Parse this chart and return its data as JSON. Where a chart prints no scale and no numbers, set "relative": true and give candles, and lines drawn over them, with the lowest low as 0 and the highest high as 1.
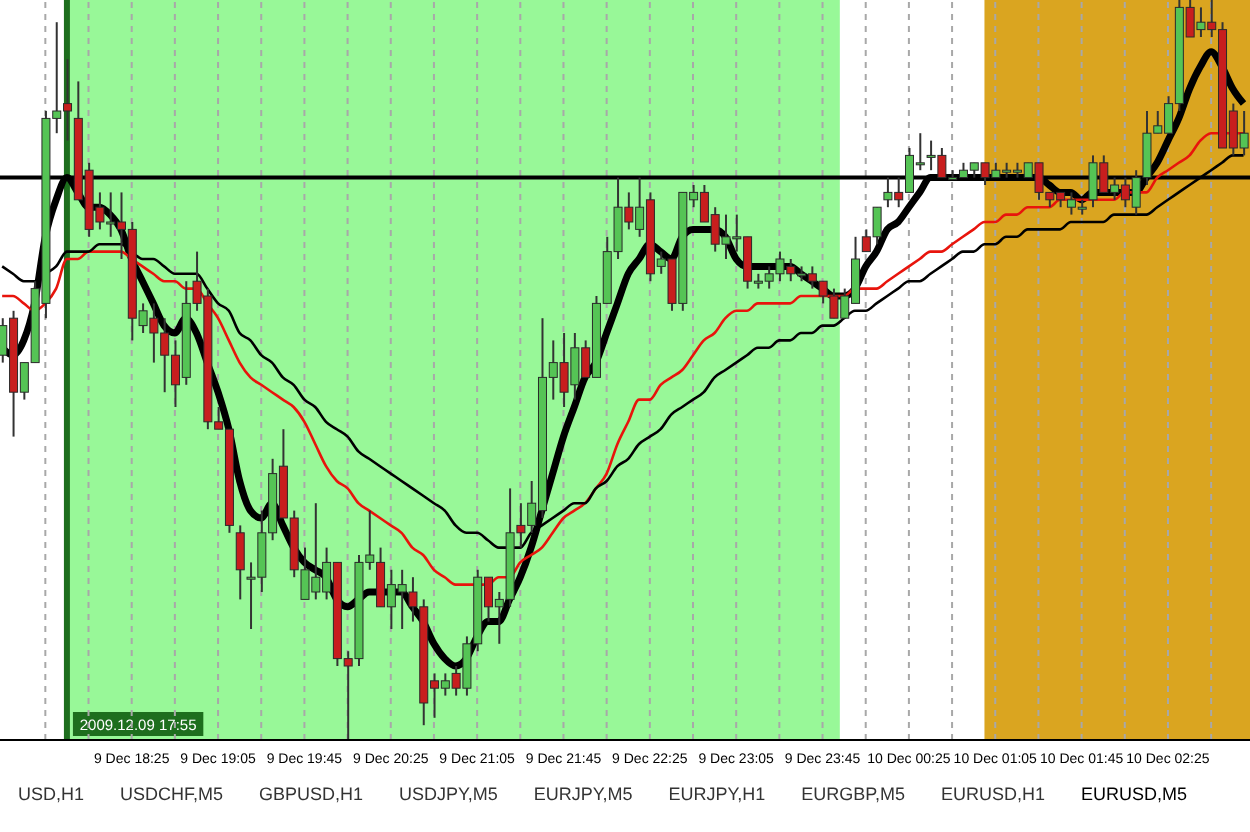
{
  "chart_data": {
    "type": "candlestick",
    "relative": true,
    "grid": "x",
    "x": [
      "2009-12-09T17:25",
      "2009-12-09T17:30",
      "2009-12-09T17:35",
      "2009-12-09T17:40",
      "2009-12-09T17:45",
      "2009-12-09T17:50",
      "2009-12-09T17:55",
      "2009-12-09T18:00",
      "2009-12-09T18:05",
      "2009-12-09T18:10",
      "2009-12-09T18:15",
      "2009-12-09T18:20",
      "2009-12-09T18:25",
      "2009-12-09T18:30",
      "2009-12-09T18:35",
      "2009-12-09T18:40",
      "2009-12-09T18:45",
      "2009-12-09T18:50",
      "2009-12-09T18:55",
      "2009-12-09T19:00",
      "2009-12-09T19:05",
      "2009-12-09T19:10",
      "2009-12-09T19:15",
      "2009-12-09T19:20",
      "2009-12-09T19:25",
      "2009-12-09T19:30",
      "2009-12-09T19:35",
      "2009-12-09T19:40",
      "2009-12-09T19:45",
      "2009-12-09T19:50",
      "2009-12-09T19:55",
      "2009-12-09T20:00",
      "2009-12-09T20:05",
      "2009-12-09T20:10",
      "2009-12-09T20:15",
      "2009-12-09T20:20",
      "2009-12-09T20:25",
      "2009-12-09T20:30",
      "2009-12-09T20:35",
      "2009-12-09T20:40",
      "2009-12-09T20:45",
      "2009-12-09T20:50",
      "2009-12-09T20:55",
      "2009-12-09T21:00",
      "2009-12-09T21:05",
      "2009-12-09T21:10",
      "2009-12-09T21:15",
      "2009-12-09T21:20",
      "2009-12-09T21:25",
      "2009-12-09T21:30",
      "2009-12-09T21:35",
      "2009-12-09T21:40",
      "2009-12-09T21:45",
      "2009-12-09T21:50",
      "2009-12-09T21:55",
      "2009-12-09T22:00",
      "2009-12-09T22:05",
      "2009-12-09T22:10",
      "2009-12-09T22:15",
      "2009-12-09T22:20",
      "2009-12-09T22:25",
      "2009-12-09T22:30",
      "2009-12-09T22:35",
      "2009-12-09T22:40",
      "2009-12-09T22:45",
      "2009-12-09T22:50",
      "2009-12-09T22:55",
      "2009-12-09T23:00",
      "2009-12-09T23:05",
      "2009-12-09T23:10",
      "2009-12-09T23:15",
      "2009-12-09T23:20",
      "2009-12-09T23:25",
      "2009-12-09T23:30",
      "2009-12-09T23:35",
      "2009-12-09T23:40",
      "2009-12-09T23:45",
      "2009-12-09T23:50",
      "2009-12-09T23:55",
      "2009-12-10T00:00",
      "2009-12-10T00:05",
      "2009-12-10T00:10",
      "2009-12-10T00:15",
      "2009-12-10T00:20",
      "2009-12-10T00:25",
      "2009-12-10T00:30",
      "2009-12-10T00:35",
      "2009-12-10T00:40",
      "2009-12-10T00:45",
      "2009-12-10T00:50",
      "2009-12-10T00:55",
      "2009-12-10T01:00",
      "2009-12-10T01:05",
      "2009-12-10T01:10",
      "2009-12-10T01:15",
      "2009-12-10T01:20",
      "2009-12-10T01:25",
      "2009-12-10T01:30",
      "2009-12-10T01:35",
      "2009-12-10T01:40",
      "2009-12-10T01:45",
      "2009-12-10T01:50",
      "2009-12-10T01:55",
      "2009-12-10T02:00",
      "2009-12-10T02:05",
      "2009-12-10T02:10",
      "2009-12-10T02:15",
      "2009-12-10T02:20",
      "2009-12-10T02:25",
      "2009-12-10T02:30",
      "2009-12-10T02:35",
      "2009-12-10T02:40",
      "2009-12-10T02:45",
      "2009-12-10T02:50",
      "2009-12-10T02:55",
      "2009-12-10T03:00"
    ],
    "ohlc": [
      [
        0.52,
        0.57,
        0.51,
        0.56
      ],
      [
        0.57,
        0.58,
        0.41,
        0.47
      ],
      [
        0.47,
        0.51,
        0.46,
        0.51
      ],
      [
        0.51,
        0.62,
        0.51,
        0.61
      ],
      [
        0.59,
        0.85,
        0.57,
        0.84
      ],
      [
        0.84,
        0.97,
        0.82,
        0.85
      ],
      [
        0.86,
        0.92,
        0.81,
        0.85
      ],
      [
        0.84,
        0.89,
        0.73,
        0.73
      ],
      [
        0.77,
        0.78,
        0.68,
        0.69
      ],
      [
        0.72,
        0.74,
        0.69,
        0.7
      ],
      [
        0.7,
        0.74,
        0.68,
        0.7
      ],
      [
        0.7,
        0.74,
        0.65,
        0.69
      ],
      [
        0.69,
        0.7,
        0.54,
        0.57
      ],
      [
        0.56,
        0.59,
        0.55,
        0.58
      ],
      [
        0.57,
        0.59,
        0.51,
        0.55
      ],
      [
        0.55,
        0.57,
        0.47,
        0.52
      ],
      [
        0.52,
        0.54,
        0.45,
        0.48
      ],
      [
        0.49,
        0.62,
        0.48,
        0.59
      ],
      [
        0.62,
        0.66,
        0.58,
        0.59
      ],
      [
        0.6,
        0.61,
        0.42,
        0.43
      ],
      [
        0.43,
        0.45,
        0.42,
        0.42
      ],
      [
        0.42,
        0.42,
        0.28,
        0.29
      ],
      [
        0.28,
        0.29,
        0.19,
        0.23
      ],
      [
        0.22,
        0.24,
        0.15,
        0.22
      ],
      [
        0.22,
        0.31,
        0.2,
        0.28
      ],
      [
        0.28,
        0.38,
        0.27,
        0.36
      ],
      [
        0.37,
        0.42,
        0.3,
        0.3
      ],
      [
        0.3,
        0.31,
        0.22,
        0.23
      ],
      [
        0.19,
        0.26,
        0.19,
        0.23
      ],
      [
        0.2,
        0.32,
        0.19,
        0.22
      ],
      [
        0.2,
        0.26,
        0.19,
        0.24
      ],
      [
        0.24,
        0.24,
        0.1,
        0.11
      ],
      [
        0.11,
        0.12,
        0.0,
        0.1
      ],
      [
        0.11,
        0.25,
        0.1,
        0.24
      ],
      [
        0.24,
        0.31,
        0.23,
        0.25
      ],
      [
        0.24,
        0.26,
        0.18,
        0.18
      ],
      [
        0.18,
        0.23,
        0.15,
        0.21
      ],
      [
        0.2,
        0.23,
        0.15,
        0.21
      ],
      [
        0.2,
        0.22,
        0.16,
        0.18
      ],
      [
        0.18,
        0.19,
        0.02,
        0.05
      ],
      [
        0.08,
        0.09,
        0.03,
        0.07
      ],
      [
        0.07,
        0.09,
        0.06,
        0.08
      ],
      [
        0.09,
        0.1,
        0.06,
        0.07
      ],
      [
        0.07,
        0.14,
        0.06,
        0.13
      ],
      [
        0.13,
        0.23,
        0.12,
        0.22
      ],
      [
        0.22,
        0.22,
        0.16,
        0.18
      ],
      [
        0.18,
        0.2,
        0.13,
        0.19
      ],
      [
        0.19,
        0.34,
        0.18,
        0.28
      ],
      [
        0.29,
        0.32,
        0.26,
        0.28
      ],
      [
        0.29,
        0.35,
        0.28,
        0.32
      ],
      [
        0.31,
        0.57,
        0.3,
        0.49
      ],
      [
        0.49,
        0.54,
        0.46,
        0.51
      ],
      [
        0.51,
        0.55,
        0.45,
        0.47
      ],
      [
        0.48,
        0.55,
        0.46,
        0.53
      ],
      [
        0.53,
        0.54,
        0.49,
        0.49
      ],
      [
        0.49,
        0.6,
        0.49,
        0.59
      ],
      [
        0.59,
        0.68,
        0.59,
        0.66
      ],
      [
        0.66,
        0.76,
        0.65,
        0.72
      ],
      [
        0.72,
        0.74,
        0.69,
        0.7
      ],
      [
        0.69,
        0.76,
        0.68,
        0.72
      ],
      [
        0.73,
        0.74,
        0.62,
        0.63
      ],
      [
        0.64,
        0.66,
        0.63,
        0.65
      ],
      [
        0.65,
        0.65,
        0.58,
        0.59
      ],
      [
        0.59,
        0.74,
        0.58,
        0.74
      ],
      [
        0.73,
        0.75,
        0.72,
        0.74
      ],
      [
        0.74,
        0.75,
        0.7,
        0.7
      ],
      [
        0.71,
        0.72,
        0.66,
        0.67
      ],
      [
        0.67,
        0.71,
        0.65,
        0.68
      ],
      [
        0.68,
        0.71,
        0.66,
        0.68
      ],
      [
        0.68,
        0.68,
        0.61,
        0.62
      ],
      [
        0.62,
        0.63,
        0.61,
        0.62
      ],
      [
        0.62,
        0.64,
        0.61,
        0.63
      ],
      [
        0.63,
        0.66,
        0.62,
        0.65
      ],
      [
        0.64,
        0.65,
        0.62,
        0.63
      ],
      [
        0.63,
        0.64,
        0.62,
        0.63
      ],
      [
        0.63,
        0.64,
        0.61,
        0.62
      ],
      [
        0.62,
        0.62,
        0.59,
        0.6
      ],
      [
        0.6,
        0.61,
        0.57,
        0.57
      ],
      [
        0.57,
        0.61,
        0.57,
        0.6
      ],
      [
        0.59,
        0.68,
        0.59,
        0.65
      ],
      [
        0.68,
        0.69,
        0.66,
        0.66
      ],
      [
        0.68,
        0.72,
        0.67,
        0.72
      ],
      [
        0.73,
        0.76,
        0.72,
        0.74
      ],
      [
        0.74,
        0.76,
        0.72,
        0.73
      ],
      [
        0.74,
        0.8,
        0.74,
        0.79
      ],
      [
        0.78,
        0.82,
        0.77,
        0.78
      ],
      [
        0.79,
        0.81,
        0.77,
        0.79
      ],
      [
        0.79,
        0.8,
        0.76,
        0.76
      ],
      [
        0.76,
        0.77,
        0.76,
        0.76
      ],
      [
        0.76,
        0.78,
        0.76,
        0.77
      ],
      [
        0.77,
        0.78,
        0.76,
        0.78
      ],
      [
        0.78,
        0.78,
        0.75,
        0.76
      ],
      [
        0.76,
        0.78,
        0.76,
        0.77
      ],
      [
        0.77,
        0.78,
        0.76,
        0.77
      ],
      [
        0.77,
        0.78,
        0.76,
        0.77
      ],
      [
        0.76,
        0.78,
        0.76,
        0.78
      ],
      [
        0.78,
        0.78,
        0.73,
        0.74
      ],
      [
        0.74,
        0.74,
        0.72,
        0.73
      ],
      [
        0.74,
        0.74,
        0.72,
        0.73
      ],
      [
        0.72,
        0.74,
        0.71,
        0.73
      ],
      [
        0.72,
        0.73,
        0.71,
        0.72
      ],
      [
        0.73,
        0.79,
        0.72,
        0.78
      ],
      [
        0.78,
        0.79,
        0.74,
        0.74
      ],
      [
        0.74,
        0.76,
        0.73,
        0.75
      ],
      [
        0.75,
        0.76,
        0.72,
        0.73
      ],
      [
        0.72,
        0.77,
        0.71,
        0.76
      ],
      [
        0.76,
        0.85,
        0.75,
        0.82
      ],
      [
        0.82,
        0.85,
        0.82,
        0.83
      ],
      [
        0.82,
        0.87,
        0.82,
        0.86
      ],
      [
        0.86,
        1.0,
        0.85,
        0.99
      ],
      [
        0.99,
        1.0,
        0.95,
        0.95
      ],
      [
        0.96,
        0.99,
        0.95,
        0.97
      ],
      [
        0.97,
        1.0,
        0.95,
        0.96
      ],
      [
        0.96,
        0.97,
        0.8,
        0.8
      ],
      [
        0.85,
        0.86,
        0.79,
        0.8
      ],
      [
        0.8,
        0.85,
        0.79,
        0.82
      ]
    ],
    "series": [
      {
        "type": "line",
        "color": "#000000",
        "values": [
          0.53,
          0.52,
          0.54,
          0.59,
          0.68,
          0.73,
          0.76,
          0.74,
          0.72,
          0.72,
          0.71,
          0.69,
          0.65,
          0.62,
          0.59,
          0.56,
          0.55,
          0.57,
          0.55,
          0.51,
          0.47,
          0.42,
          0.35,
          0.31,
          0.3,
          0.32,
          0.29,
          0.26,
          0.24,
          0.23,
          0.22,
          0.19,
          0.18,
          0.19,
          0.2,
          0.2,
          0.2,
          0.2,
          0.18,
          0.16,
          0.13,
          0.11,
          0.1,
          0.11,
          0.14,
          0.16,
          0.16,
          0.19,
          0.22,
          0.26,
          0.31,
          0.36,
          0.41,
          0.45,
          0.49,
          0.51,
          0.55,
          0.59,
          0.63,
          0.65,
          0.67,
          0.66,
          0.65,
          0.68,
          0.69,
          0.69,
          0.69,
          0.68,
          0.65,
          0.64,
          0.64,
          0.64,
          0.64,
          0.64,
          0.63,
          0.62,
          0.61,
          0.6,
          0.6,
          0.61,
          0.64,
          0.66,
          0.69,
          0.7,
          0.72,
          0.74,
          0.76,
          0.76,
          0.76,
          0.76,
          0.76,
          0.76,
          0.76,
          0.76,
          0.76,
          0.76,
          0.76,
          0.75,
          0.74,
          0.74,
          0.73,
          0.74,
          0.74,
          0.74,
          0.74,
          0.74,
          0.76,
          0.78,
          0.81,
          0.84,
          0.88,
          0.91,
          0.93,
          0.91,
          0.88,
          0.86
        ]
      },
      {
        "type": "line",
        "color": "#e8140c",
        "values": [
          0.6,
          0.6,
          0.59,
          0.58,
          0.59,
          0.61,
          0.65,
          0.65,
          0.66,
          0.66,
          0.66,
          0.66,
          0.65,
          0.64,
          0.63,
          0.62,
          0.62,
          0.61,
          0.61,
          0.59,
          0.57,
          0.54,
          0.51,
          0.49,
          0.48,
          0.47,
          0.46,
          0.45,
          0.43,
          0.4,
          0.37,
          0.35,
          0.34,
          0.32,
          0.31,
          0.3,
          0.29,
          0.28,
          0.26,
          0.25,
          0.23,
          0.22,
          0.21,
          0.21,
          0.21,
          0.21,
          0.22,
          0.22,
          0.24,
          0.25,
          0.26,
          0.28,
          0.3,
          0.31,
          0.32,
          0.34,
          0.36,
          0.4,
          0.43,
          0.46,
          0.46,
          0.48,
          0.49,
          0.5,
          0.52,
          0.54,
          0.55,
          0.57,
          0.58,
          0.58,
          0.59,
          0.59,
          0.59,
          0.59,
          0.6,
          0.6,
          0.6,
          0.6,
          0.6,
          0.61,
          0.61,
          0.61,
          0.62,
          0.63,
          0.64,
          0.65,
          0.66,
          0.66,
          0.67,
          0.68,
          0.69,
          0.7,
          0.7,
          0.71,
          0.71,
          0.72,
          0.72,
          0.72,
          0.73,
          0.73,
          0.73,
          0.73,
          0.73,
          0.73,
          0.74,
          0.74,
          0.74,
          0.76,
          0.77,
          0.78,
          0.79,
          0.81,
          0.82,
          0.82,
          0.82,
          0.82
        ]
      },
      {
        "type": "line",
        "color": "#000000",
        "values": [
          0.64,
          0.63,
          0.62,
          0.62,
          0.63,
          0.64,
          0.66,
          0.66,
          0.66,
          0.67,
          0.67,
          0.67,
          0.66,
          0.65,
          0.65,
          0.64,
          0.63,
          0.63,
          0.63,
          0.61,
          0.59,
          0.58,
          0.55,
          0.54,
          0.52,
          0.51,
          0.49,
          0.48,
          0.46,
          0.45,
          0.43,
          0.42,
          0.41,
          0.39,
          0.38,
          0.37,
          0.36,
          0.35,
          0.34,
          0.33,
          0.32,
          0.31,
          0.29,
          0.28,
          0.28,
          0.27,
          0.26,
          0.26,
          0.26,
          0.28,
          0.29,
          0.3,
          0.31,
          0.32,
          0.32,
          0.34,
          0.35,
          0.37,
          0.38,
          0.4,
          0.41,
          0.42,
          0.44,
          0.45,
          0.46,
          0.47,
          0.49,
          0.5,
          0.51,
          0.52,
          0.53,
          0.53,
          0.54,
          0.54,
          0.55,
          0.55,
          0.56,
          0.56,
          0.57,
          0.58,
          0.58,
          0.59,
          0.6,
          0.61,
          0.62,
          0.62,
          0.63,
          0.64,
          0.65,
          0.66,
          0.66,
          0.67,
          0.67,
          0.68,
          0.68,
          0.69,
          0.69,
          0.69,
          0.69,
          0.7,
          0.7,
          0.7,
          0.7,
          0.71,
          0.71,
          0.71,
          0.71,
          0.72,
          0.73,
          0.74,
          0.75,
          0.76,
          0.77,
          0.78,
          0.79,
          0.79
        ]
      }
    ],
    "xlim": [
      "2009-12-09T17:24",
      "2009-12-10T03:03"
    ],
    "xticks": [
      {
        "value": "2009-12-09T17:45",
        "label": null
      },
      {
        "value": "2009-12-09T18:05",
        "label": null
      },
      {
        "value": "2009-12-09T18:25",
        "label": "9 Dec 18:25"
      },
      {
        "value": "2009-12-09T18:45",
        "label": null
      },
      {
        "value": "2009-12-09T19:05",
        "label": "9 Dec 19:05"
      },
      {
        "value": "2009-12-09T19:25",
        "label": null
      },
      {
        "value": "2009-12-09T19:45",
        "label": "9 Dec 19:45"
      },
      {
        "value": "2009-12-09T20:05",
        "label": null
      },
      {
        "value": "2009-12-09T20:25",
        "label": "9 Dec 20:25"
      },
      {
        "value": "2009-12-09T20:45",
        "label": null
      },
      {
        "value": "2009-12-09T21:05",
        "label": "9 Dec 21:05"
      },
      {
        "value": "2009-12-09T21:25",
        "label": null
      },
      {
        "value": "2009-12-09T21:45",
        "label": "9 Dec 21:45"
      },
      {
        "value": "2009-12-09T22:05",
        "label": null
      },
      {
        "value": "2009-12-09T22:25",
        "label": "9 Dec 22:25"
      },
      {
        "value": "2009-12-09T22:45",
        "label": null
      },
      {
        "value": "2009-12-09T23:05",
        "label": "9 Dec 23:05"
      },
      {
        "value": "2009-12-09T23:25",
        "label": null
      },
      {
        "value": "2009-12-09T23:45",
        "label": "9 Dec 23:45"
      },
      {
        "value": "2009-12-10T00:05",
        "label": null
      },
      {
        "value": "2009-12-10T00:25",
        "label": "10 Dec 00:25"
      },
      {
        "value": "2009-12-10T00:45",
        "label": null
      },
      {
        "value": "2009-12-10T01:05",
        "label": "10 Dec 01:05"
      },
      {
        "value": "2009-12-10T01:25",
        "label": null
      },
      {
        "value": "2009-12-10T01:45",
        "label": "10 Dec 01:45"
      },
      {
        "value": "2009-12-10T02:05",
        "label": null
      },
      {
        "value": "2009-12-10T02:25",
        "label": "10 Dec 02:25"
      },
      {
        "value": "2009-12-10T02:45",
        "label": null
      }
    ],
    "ref_lines": [
      {
        "axis": "y",
        "value": 0.76,
        "color": "#000000"
      },
      {
        "axis": "x",
        "value": "2009-12-09T17:55",
        "label": "2009.12.09 17:55",
        "color": "#1e6e1e"
      }
    ],
    "bands": [
      {
        "axis": "x",
        "from": "2009-12-09T17:56",
        "to": "2009-12-09T23:53",
        "color": "#98f898"
      },
      {
        "axis": "x",
        "from": "2009-12-10T01:00",
        "to": "2009-12-10T03:03",
        "color": "#daa520"
      }
    ],
    "annotations": [
      "USD,H1",
      "USDCHF,M5",
      "GBPUSD,H1",
      "USDJPY,M5",
      "EURJPY,M5",
      "EURJPY,H1",
      "EURGBP,M5",
      "EURUSD,H1",
      "EURUSD,M5"
    ]
  }
}
